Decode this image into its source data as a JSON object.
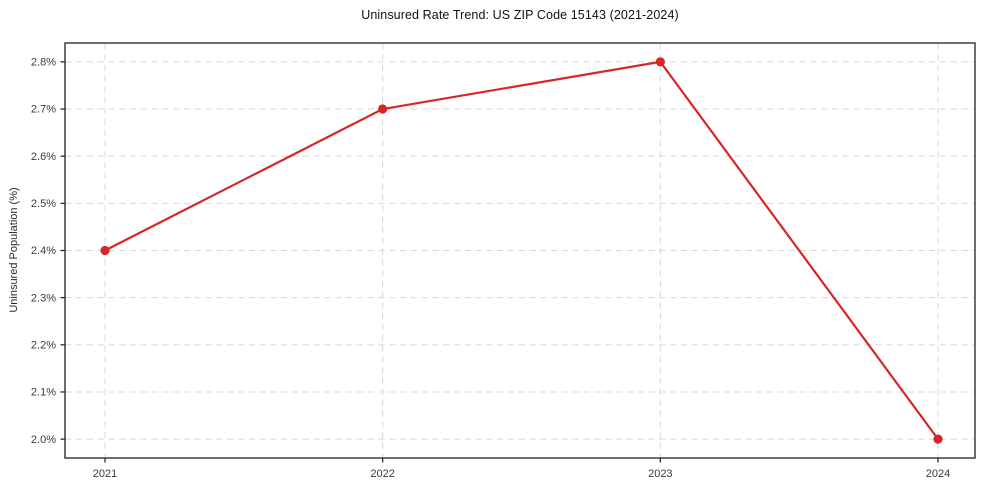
{
  "figure": {
    "background": "#ffffff"
  },
  "chart_data": {
    "type": "line",
    "title": "Uninsured Rate Trend: US ZIP Code 15143 (2021-2024)",
    "xlabel": "",
    "ylabel": "Uninsured Population (%)",
    "categories": [
      "2021",
      "2022",
      "2023",
      "2024"
    ],
    "series": [
      {
        "name": "uninsured-rate",
        "values": [
          2.4,
          2.7,
          2.8,
          2.0
        ],
        "color": "#d62728",
        "marker": "circle"
      }
    ],
    "y_ticks": [
      2.0,
      2.1,
      2.2,
      2.3,
      2.4,
      2.5,
      2.6,
      2.7,
      2.8
    ],
    "y_tick_suffix": "%",
    "y_tick_decimals": 1,
    "ylim": [
      1.96,
      2.84
    ],
    "grid": {
      "show": true,
      "style": "dashed",
      "color": "#d8d8d8"
    },
    "legend_position": "none",
    "axis_color": "#1f1f1f",
    "tick_label_color": "#3a3a3a"
  }
}
